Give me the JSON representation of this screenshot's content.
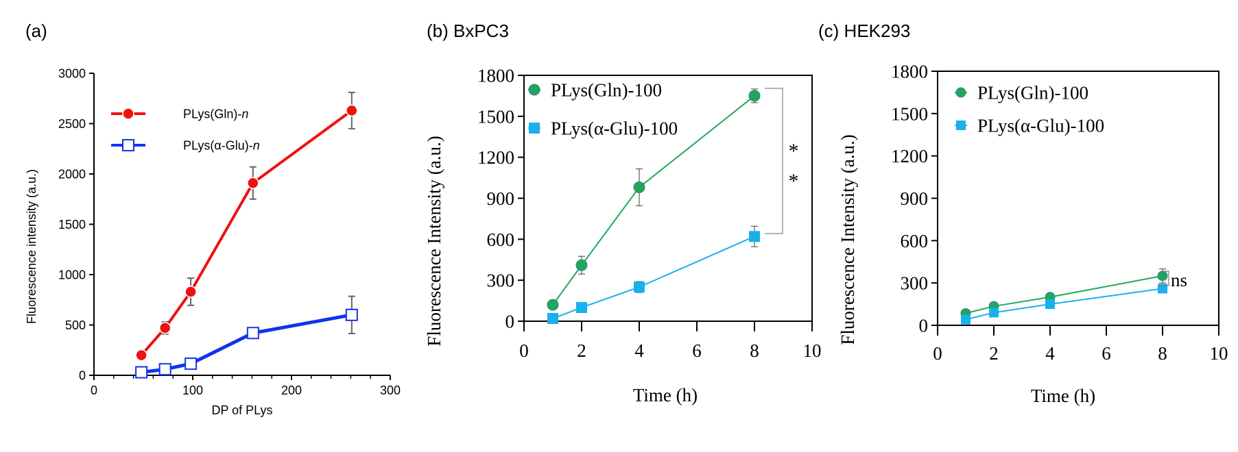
{
  "chart_data": [
    {
      "panel_label": "(a)",
      "type": "line",
      "title": "",
      "xlabel": "DP of PLys",
      "ylabel": "Fluorescence intensity (a.u.)",
      "xlim": [
        0,
        300
      ],
      "ylim": [
        0,
        3000
      ],
      "xticks": [
        "0",
        "100",
        "200",
        "300"
      ],
      "yticks": [
        "0",
        "500",
        "1000",
        "1500",
        "2000",
        "2500",
        "3000"
      ],
      "xtick_values": [
        0,
        100,
        200,
        300
      ],
      "ytick_values": [
        0,
        500,
        1000,
        1500,
        2000,
        2500,
        3000
      ],
      "x_minor_step": 20,
      "grid": false,
      "legend_position": "top-left",
      "series": [
        {
          "name": "PLys(Gln)-",
          "name_italic": "n",
          "color": "#ee1111",
          "marker": "filled-circle",
          "x": [
            48,
            72,
            98,
            161,
            261
          ],
          "y": [
            200,
            470,
            830,
            1910,
            2630
          ],
          "err": [
            20,
            60,
            135,
            160,
            180
          ]
        },
        {
          "name": "PLys(α-Glu)-",
          "name_italic": "n",
          "color": "#1133ee",
          "marker": "open-square",
          "x": [
            48,
            72,
            98,
            161,
            261
          ],
          "y": [
            30,
            60,
            115,
            420,
            600
          ],
          "err": [
            10,
            15,
            20,
            30,
            185
          ]
        }
      ]
    },
    {
      "panel_label": "(b) BxPC3",
      "type": "line",
      "title": "",
      "xlabel": "Time (h)",
      "ylabel": "Fluorescence Intensity (a.u.)",
      "xlim": [
        0,
        10
      ],
      "ylim": [
        0,
        1800
      ],
      "xticks": [
        "0",
        "2",
        "4",
        "6",
        "8",
        "10"
      ],
      "yticks": [
        "0",
        "300",
        "600",
        "900",
        "1200",
        "1500",
        "1800"
      ],
      "xtick_values": [
        0,
        2,
        4,
        6,
        8,
        10
      ],
      "ytick_values": [
        0,
        300,
        600,
        900,
        1200,
        1500,
        1800
      ],
      "grid": false,
      "legend_position": "top-left",
      "annotation": "* *",
      "annotation_marks": [
        "*",
        "*"
      ],
      "series": [
        {
          "name": "PLys(Gln)-100",
          "color": "#1fa85a",
          "marker": "filled-circle",
          "x": [
            1,
            2,
            4,
            8
          ],
          "y": [
            120,
            410,
            980,
            1650
          ],
          "err": [
            10,
            65,
            135,
            50
          ]
        },
        {
          "name": "PLys(α-Glu)-100",
          "color": "#19b0ec",
          "marker": "filled-square",
          "x": [
            1,
            2,
            4,
            8
          ],
          "y": [
            20,
            100,
            250,
            620
          ],
          "err": [
            5,
            10,
            40,
            75
          ]
        }
      ]
    },
    {
      "panel_label": "(c) HEK293",
      "type": "line",
      "title": "",
      "xlabel": "Time (h)",
      "ylabel": "Fluorescence Intensity (a.u.)",
      "xlim": [
        0,
        10
      ],
      "ylim": [
        0,
        1800
      ],
      "xticks": [
        "0",
        "2",
        "4",
        "6",
        "8",
        "10"
      ],
      "yticks": [
        "0",
        "300",
        "600",
        "900",
        "1200",
        "1500",
        "1800"
      ],
      "xtick_values": [
        0,
        2,
        4,
        6,
        8,
        10
      ],
      "ytick_values": [
        0,
        300,
        600,
        900,
        1200,
        1500,
        1800
      ],
      "grid": false,
      "legend_position": "top-left",
      "annotation": "ns",
      "series": [
        {
          "name": "PLys(Gln)-100",
          "color": "#1fa85a",
          "marker": "filled-circle",
          "x": [
            1,
            2,
            4,
            8
          ],
          "y": [
            85,
            135,
            200,
            350
          ],
          "err": [
            5,
            10,
            10,
            50
          ]
        },
        {
          "name": "PLys(α-Glu)-100",
          "color": "#19b0ec",
          "marker": "filled-square",
          "x": [
            1,
            2,
            4,
            8
          ],
          "y": [
            40,
            90,
            150,
            260
          ],
          "err": [
            5,
            10,
            10,
            15
          ]
        }
      ]
    }
  ]
}
